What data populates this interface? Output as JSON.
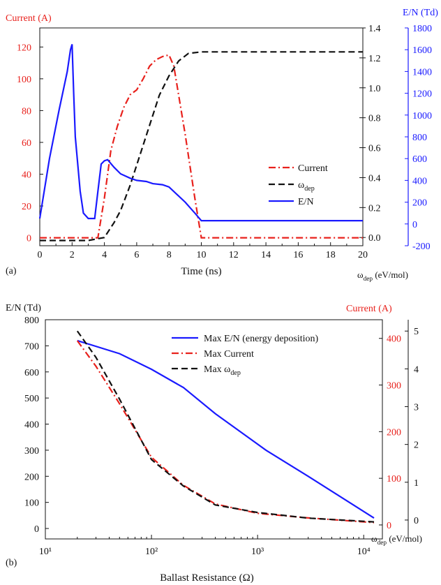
{
  "colors": {
    "current": "#e8211c",
    "energy": "#111111",
    "field": "#1a1aff",
    "axis": "#111111"
  },
  "chart_data": [
    {
      "type": "line",
      "panel_label": "(a)",
      "xlabel": "Time (ns)",
      "xlim": [
        0,
        20
      ],
      "x_ticks": [
        "0",
        "2",
        "4",
        "6",
        "8",
        "10",
        "12",
        "14",
        "16",
        "18",
        "20"
      ],
      "y_left": {
        "label": "Current (A)",
        "lim": [
          -5,
          132
        ],
        "ticks": [
          "0",
          "20",
          "40",
          "60",
          "80",
          "100",
          "120"
        ],
        "color": "#e8211c"
      },
      "y_right_1": {
        "label": "ω_dep (eV/mol)",
        "lim": [
          -0.055,
          1.4
        ],
        "ticks": [
          "0.0",
          "0.2",
          "0.4",
          "0.6",
          "0.8",
          "1.0",
          "1.2",
          "1.4"
        ],
        "color": "#111111"
      },
      "y_right_2": {
        "label": "E/N (Td)",
        "lim": [
          -200,
          1800
        ],
        "ticks": [
          "-200",
          "0",
          "200",
          "400",
          "600",
          "800",
          "1000",
          "1200",
          "1400",
          "1600",
          "1800"
        ],
        "color": "#1a1aff"
      },
      "legend_position": "center-right",
      "series": [
        {
          "name": "Current",
          "axis": "left",
          "style": "dashdot",
          "color": "#e8211c",
          "points": [
            [
              0,
              0
            ],
            [
              3.6,
              0
            ],
            [
              4.0,
              25
            ],
            [
              4.4,
              55
            ],
            [
              4.8,
              70
            ],
            [
              5.2,
              82
            ],
            [
              5.6,
              90
            ],
            [
              6.0,
              93
            ],
            [
              6.4,
              100
            ],
            [
              6.8,
              108
            ],
            [
              7.2,
              112
            ],
            [
              7.6,
              114
            ],
            [
              8.0,
              115
            ],
            [
              8.3,
              108
            ],
            [
              9.0,
              65
            ],
            [
              9.6,
              25
            ],
            [
              10.0,
              0
            ],
            [
              20,
              0
            ]
          ]
        },
        {
          "name": "ω_dep",
          "axis": "right_1",
          "style": "dashed",
          "color": "#111111",
          "points": [
            [
              0,
              -0.02
            ],
            [
              3.0,
              -0.02
            ],
            [
              4.0,
              0.0
            ],
            [
              4.6,
              0.1
            ],
            [
              5.0,
              0.18
            ],
            [
              5.6,
              0.35
            ],
            [
              6.2,
              0.55
            ],
            [
              6.8,
              0.75
            ],
            [
              7.4,
              0.95
            ],
            [
              8.0,
              1.08
            ],
            [
              8.6,
              1.18
            ],
            [
              9.2,
              1.23
            ],
            [
              10,
              1.24
            ],
            [
              20,
              1.24
            ]
          ]
        },
        {
          "name": "E/N",
          "axis": "right_2",
          "style": "solid",
          "color": "#1a1aff",
          "points": [
            [
              0,
              50
            ],
            [
              0.6,
              600
            ],
            [
              1.2,
              1050
            ],
            [
              1.7,
              1400
            ],
            [
              1.9,
              1600
            ],
            [
              2.0,
              1650
            ],
            [
              2.1,
              1200
            ],
            [
              2.2,
              800
            ],
            [
              2.5,
              300
            ],
            [
              2.7,
              100
            ],
            [
              3.0,
              50
            ],
            [
              3.4,
              50
            ],
            [
              3.6,
              300
            ],
            [
              3.8,
              550
            ],
            [
              4.0,
              580
            ],
            [
              4.2,
              590
            ],
            [
              4.6,
              520
            ],
            [
              5.0,
              460
            ],
            [
              5.6,
              420
            ],
            [
              6.0,
              400
            ],
            [
              6.6,
              390
            ],
            [
              7.0,
              370
            ],
            [
              7.6,
              360
            ],
            [
              8.0,
              340
            ],
            [
              9.0,
              200
            ],
            [
              9.6,
              100
            ],
            [
              10,
              30
            ],
            [
              20,
              30
            ]
          ]
        }
      ]
    },
    {
      "type": "line",
      "panel_label": "(b)",
      "xlabel": "Ballast Resistance (Ω)",
      "x_scale": "log",
      "xlim": [
        10,
        15000
      ],
      "x_ticks": [
        "10¹",
        "10²",
        "10³",
        "10⁴"
      ],
      "y_left": {
        "label": "E/N (Td)",
        "lim": [
          -40,
          800
        ],
        "ticks": [
          "0",
          "100",
          "200",
          "300",
          "400",
          "500",
          "600",
          "700",
          "800"
        ],
        "color": "#111111"
      },
      "y_right_1": {
        "label": "Current (A)",
        "lim": [
          -30,
          440
        ],
        "ticks": [
          "0",
          "100",
          "200",
          "300",
          "400"
        ],
        "color": "#e8211c"
      },
      "y_right_2": {
        "label": "ω_dep (eV/mol)",
        "lim": [
          -0.5,
          5.3
        ],
        "ticks": [
          "0",
          "1",
          "2",
          "3",
          "4",
          "5"
        ],
        "color": "#111111"
      },
      "legend_position": "top-right",
      "series": [
        {
          "name": "Max E/N (energy deposition)",
          "axis": "left",
          "style": "solid",
          "color": "#1a1aff",
          "points": [
            [
              20,
              720
            ],
            [
              50,
              670
            ],
            [
              100,
              610
            ],
            [
              200,
              540
            ],
            [
              400,
              440
            ],
            [
              1200,
              300
            ],
            [
              3000,
              200
            ],
            [
              12500,
              40
            ]
          ]
        },
        {
          "name": "Max Current",
          "axis": "right_1",
          "style": "dashdot",
          "color": "#e8211c",
          "points": [
            [
              20,
              395
            ],
            [
              30,
              340
            ],
            [
              50,
              260
            ],
            [
              100,
              145
            ],
            [
              200,
              85
            ],
            [
              400,
              45
            ],
            [
              1000,
              25
            ],
            [
              3000,
              15
            ],
            [
              12500,
              5
            ]
          ]
        },
        {
          "name": "Max ω_dep",
          "axis": "right_2",
          "style": "dashed",
          "color": "#111111",
          "points": [
            [
              20,
              5.0
            ],
            [
              30,
              4.3
            ],
            [
              50,
              3.2
            ],
            [
              100,
              1.6
            ],
            [
              200,
              0.9
            ],
            [
              400,
              0.4
            ],
            [
              1000,
              0.2
            ],
            [
              3000,
              0.05
            ],
            [
              12500,
              -0.05
            ]
          ]
        }
      ]
    }
  ]
}
